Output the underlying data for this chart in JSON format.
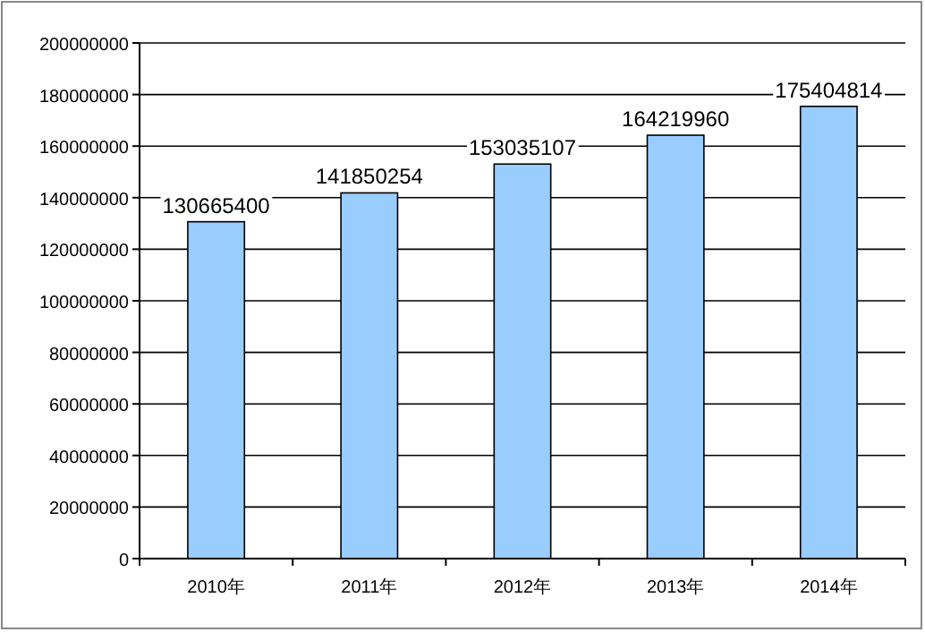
{
  "chart_data": {
    "type": "bar",
    "categories": [
      "2010年",
      "2011年",
      "2012年",
      "2013年",
      "2014年"
    ],
    "values": [
      130665400,
      141850254,
      153035107,
      164219960,
      175404814
    ],
    "color": "#99ccff",
    "ylim": [
      0,
      200000000
    ],
    "yticks": [
      0,
      20000000,
      40000000,
      60000000,
      80000000,
      100000000,
      120000000,
      140000000,
      160000000,
      180000000,
      200000000
    ],
    "grid": "y",
    "data_labels": true
  }
}
